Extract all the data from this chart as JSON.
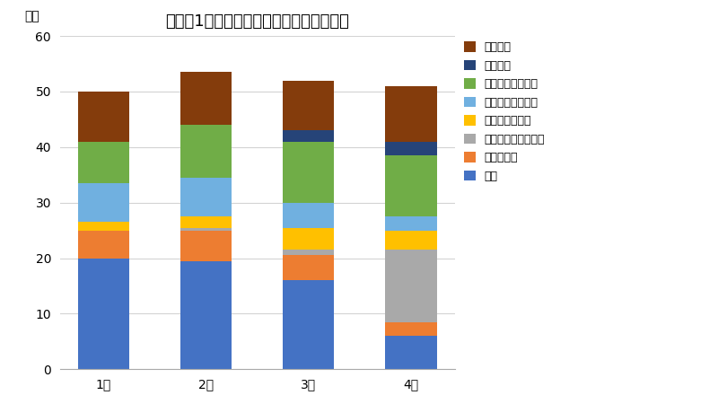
{
  "title": "学年別1週間当たりの学習時間・生活時間",
  "ylabel": "時間",
  "categories": [
    "1年",
    "2年",
    "3年",
    "4年"
  ],
  "segments": [
    {
      "label": "授業",
      "color": "#4472C4",
      "values": [
        20.0,
        19.5,
        16.0,
        6.0
      ]
    },
    {
      "label": "予習・復習",
      "color": "#ED7D31",
      "values": [
        5.0,
        5.5,
        4.5,
        2.5
      ]
    },
    {
      "label": "卒業論文・卒業研究",
      "color": "#A9A9A9",
      "values": [
        0.0,
        0.5,
        1.0,
        13.0
      ]
    },
    {
      "label": "授業以外の学修",
      "color": "#FFC000",
      "values": [
        1.5,
        2.0,
        4.0,
        3.5
      ]
    },
    {
      "label": "部活動・サークル",
      "color": "#70B0E0",
      "values": [
        7.0,
        7.0,
        4.5,
        2.5
      ]
    },
    {
      "label": "アルバイト・定職",
      "color": "#70AD47",
      "values": [
        7.5,
        9.5,
        11.0,
        11.0
      ]
    },
    {
      "label": "就職活動",
      "color": "#264478",
      "values": [
        0.0,
        0.0,
        2.0,
        2.5
      ]
    },
    {
      "label": "娯楽・友",
      "color": "#843C0C",
      "values": [
        9.0,
        9.5,
        9.0,
        10.0
      ]
    }
  ],
  "ylim": [
    0,
    60
  ],
  "yticks": [
    0,
    10,
    20,
    30,
    40,
    50,
    60
  ],
  "bar_width": 0.5,
  "figsize": [
    8.0,
    4.5
  ],
  "dpi": 100,
  "background_color": "#FFFFFF",
  "grid_color": "#D3D3D3",
  "title_fontsize": 13,
  "axis_label_fontsize": 10,
  "tick_fontsize": 10,
  "legend_fontsize": 9
}
